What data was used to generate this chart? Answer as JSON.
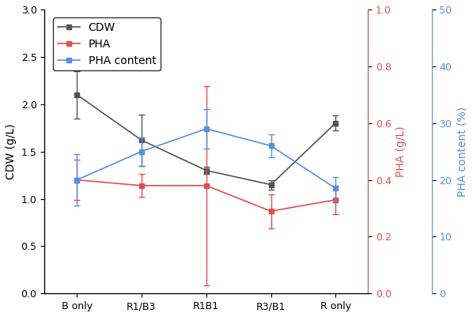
{
  "categories": [
    "B only",
    "R1/B3",
    "R1B1",
    "R3/B1",
    "R only"
  ],
  "CDW_values": [
    2.1,
    1.62,
    1.3,
    1.15,
    1.8
  ],
  "CDW_errors": [
    0.25,
    0.27,
    0.04,
    0.05,
    0.08
  ],
  "PHA_values": [
    0.4,
    0.38,
    0.38,
    0.29,
    0.33
  ],
  "PHA_errors": [
    0.07,
    0.04,
    0.35,
    0.06,
    0.05
  ],
  "PHAcontent_values": [
    20.0,
    25.0,
    29.0,
    26.0,
    18.5
  ],
  "PHAcontent_errors": [
    4.5,
    2.5,
    3.5,
    2.0,
    2.0
  ],
  "CDW_color": "#555555",
  "PHA_color": "#e05050",
  "PHAcontent_color": "#5590e0",
  "CDW_ylim": [
    0.0,
    3.0
  ],
  "CDW_yticks": [
    0.0,
    0.5,
    1.0,
    1.5,
    2.0,
    2.5,
    3.0
  ],
  "PHA_ylim": [
    0.0,
    1.0
  ],
  "PHA_yticks": [
    0.0,
    0.2,
    0.4,
    0.6,
    0.8,
    1.0
  ],
  "PHAcontent_ylim": [
    0,
    50
  ],
  "PHAcontent_yticks": [
    0,
    10,
    20,
    30,
    40,
    50
  ],
  "ylabel_left": "CDW (g/L)",
  "ylabel_right1": "PHA (g/L)",
  "ylabel_right2": "PHA content (%)",
  "legend_labels": [
    "CDW",
    "PHA",
    "PHA content"
  ],
  "figsize": [
    5.98,
    4.01
  ],
  "dpi": 100
}
